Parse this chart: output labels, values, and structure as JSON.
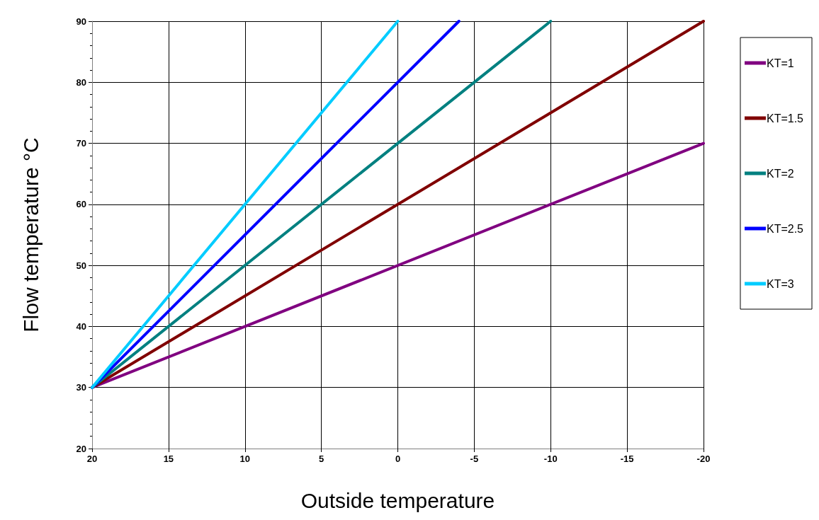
{
  "chart_data": {
    "type": "line",
    "xlabel": "Outside temperature",
    "ylabel": "Flow temperature °C",
    "xlim": [
      20,
      -20
    ],
    "xticks": [
      20,
      15,
      10,
      5,
      0,
      -5,
      -10,
      -15,
      -20
    ],
    "ylim": [
      20,
      90
    ],
    "yticks": [
      20,
      30,
      40,
      50,
      60,
      70,
      80,
      90
    ],
    "grid": true,
    "legend": "right",
    "marker": "none",
    "line_style": "solid",
    "series": [
      {
        "name": "KT=1",
        "color": "#800080",
        "x": [
          20,
          -20
        ],
        "values": [
          30,
          70
        ]
      },
      {
        "name": "KT=1.5",
        "color": "#800000",
        "x": [
          20,
          -20
        ],
        "values": [
          30,
          90
        ]
      },
      {
        "name": "KT=2",
        "color": "#008080",
        "x": [
          20,
          -10
        ],
        "values": [
          30,
          90
        ]
      },
      {
        "name": "KT=2.5",
        "color": "#0000ff",
        "x": [
          20,
          -4
        ],
        "values": [
          30,
          90
        ]
      },
      {
        "name": "KT=3",
        "color": "#00ccff",
        "x": [
          20,
          0
        ],
        "values": [
          30,
          90
        ]
      }
    ]
  }
}
